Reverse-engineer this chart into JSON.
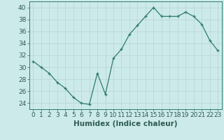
{
  "x_vals": [
    0,
    1,
    2,
    3,
    4,
    5,
    6,
    7,
    8,
    9,
    10,
    11,
    12,
    13,
    14,
    15,
    16,
    17,
    18,
    19,
    20,
    21,
    22,
    23
  ],
  "y_vals": [
    31,
    30,
    29,
    27.5,
    26.5,
    25,
    24,
    23.8,
    29,
    25.5,
    31.5,
    33,
    35.5,
    37,
    38.5,
    40,
    38.5,
    38.5,
    38.5,
    39.2,
    38.5,
    37.2,
    34.5,
    32.8
  ],
  "xlabel": "Humidex (Indice chaleur)",
  "ylim": [
    23,
    41
  ],
  "xlim": [
    -0.5,
    23.5
  ],
  "yticks": [
    24,
    26,
    28,
    30,
    32,
    34,
    36,
    38,
    40
  ],
  "xticks": [
    0,
    1,
    2,
    3,
    4,
    5,
    6,
    7,
    8,
    9,
    10,
    11,
    12,
    13,
    14,
    15,
    16,
    17,
    18,
    19,
    20,
    21,
    22,
    23
  ],
  "line_color": "#2e7b6e",
  "bg_color": "#cceaea",
  "grid_color": "#b8d4d4",
  "label_color": "#2e5c54",
  "font_size_axis": 6.5,
  "font_size_label": 7.5
}
